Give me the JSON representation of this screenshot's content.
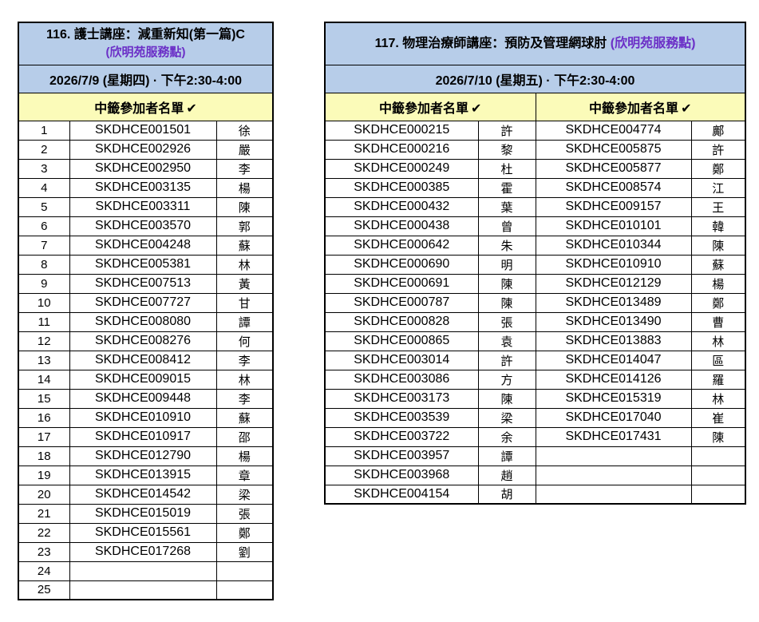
{
  "colors": {
    "header_blue": "#B7CDE9",
    "header_yellow": "#FBFBB9",
    "accent_purple": "#6B2FC7",
    "border_black": "#000000"
  },
  "tables": [
    {
      "title_main": "116. 護士講座：減重新知(第一篇)C",
      "title_sub": "(欣明苑服務點)",
      "date": "2026/7/9 (星期四) · 下午2:30-4:00",
      "list_header": "中籤參加者名單",
      "check_icon": "✔",
      "columns": [
        {
          "key": "num",
          "name": "row-number",
          "class": "c-num"
        },
        {
          "key": "code",
          "name": "participant-code",
          "class": "c-code"
        },
        {
          "key": "name",
          "name": "participant-surname",
          "class": "c-name"
        }
      ],
      "rows": [
        {
          "num": "1",
          "code": "SKDHCE001501",
          "name": "徐"
        },
        {
          "num": "2",
          "code": "SKDHCE002926",
          "name": "嚴"
        },
        {
          "num": "3",
          "code": "SKDHCE002950",
          "name": "李"
        },
        {
          "num": "4",
          "code": "SKDHCE003135",
          "name": "楊"
        },
        {
          "num": "5",
          "code": "SKDHCE003311",
          "name": "陳"
        },
        {
          "num": "6",
          "code": "SKDHCE003570",
          "name": "郭"
        },
        {
          "num": "7",
          "code": "SKDHCE004248",
          "name": "蘇"
        },
        {
          "num": "8",
          "code": "SKDHCE005381",
          "name": "林"
        },
        {
          "num": "9",
          "code": "SKDHCE007513",
          "name": "黃"
        },
        {
          "num": "10",
          "code": "SKDHCE007727",
          "name": "甘"
        },
        {
          "num": "11",
          "code": "SKDHCE008080",
          "name": "譚"
        },
        {
          "num": "12",
          "code": "SKDHCE008276",
          "name": "何"
        },
        {
          "num": "13",
          "code": "SKDHCE008412",
          "name": "李"
        },
        {
          "num": "14",
          "code": "SKDHCE009015",
          "name": "林"
        },
        {
          "num": "15",
          "code": "SKDHCE009448",
          "name": "李"
        },
        {
          "num": "16",
          "code": "SKDHCE010910",
          "name": "蘇"
        },
        {
          "num": "17",
          "code": "SKDHCE010917",
          "name": "邵"
        },
        {
          "num": "18",
          "code": "SKDHCE012790",
          "name": "楊"
        },
        {
          "num": "19",
          "code": "SKDHCE013915",
          "name": "章"
        },
        {
          "num": "20",
          "code": "SKDHCE014542",
          "name": "梁"
        },
        {
          "num": "21",
          "code": "SKDHCE015019",
          "name": "張"
        },
        {
          "num": "22",
          "code": "SKDHCE015561",
          "name": "鄭"
        },
        {
          "num": "23",
          "code": "SKDHCE017268",
          "name": "劉"
        },
        {
          "num": "24",
          "code": "",
          "name": ""
        },
        {
          "num": "25",
          "code": "",
          "name": ""
        }
      ]
    },
    {
      "title_main": "117. 物理治療師講座：預防及管理網球肘",
      "title_sub": "(欣明苑服務點)",
      "date": "2026/7/10 (星期五) · 下午2:30-4:00",
      "list_header": "中籤參加者名單",
      "check_icon": "✔",
      "columns": [
        {
          "key": "code1",
          "name": "participant-code",
          "class": "c-code"
        },
        {
          "key": "name1",
          "name": "participant-surname",
          "class": "c-name"
        },
        {
          "key": "code2",
          "name": "participant-code",
          "class": "c-code"
        },
        {
          "key": "name2",
          "name": "participant-surname",
          "class": "c-name"
        }
      ],
      "rows": [
        {
          "code1": "SKDHCE000215",
          "name1": "許",
          "code2": "SKDHCE004774",
          "name2": "鄺"
        },
        {
          "code1": "SKDHCE000216",
          "name1": "黎",
          "code2": "SKDHCE005875",
          "name2": "許"
        },
        {
          "code1": "SKDHCE000249",
          "name1": "杜",
          "code2": "SKDHCE005877",
          "name2": "鄭"
        },
        {
          "code1": "SKDHCE000385",
          "name1": "霍",
          "code2": "SKDHCE008574",
          "name2": "江"
        },
        {
          "code1": "SKDHCE000432",
          "name1": "葉",
          "code2": "SKDHCE009157",
          "name2": "王"
        },
        {
          "code1": "SKDHCE000438",
          "name1": "曾",
          "code2": "SKDHCE010101",
          "name2": "韓"
        },
        {
          "code1": "SKDHCE000642",
          "name1": "朱",
          "code2": "SKDHCE010344",
          "name2": "陳"
        },
        {
          "code1": "SKDHCE000690",
          "name1": "明",
          "code2": "SKDHCE010910",
          "name2": "蘇"
        },
        {
          "code1": "SKDHCE000691",
          "name1": "陳",
          "code2": "SKDHCE012129",
          "name2": "楊"
        },
        {
          "code1": "SKDHCE000787",
          "name1": "陳",
          "code2": "SKDHCE013489",
          "name2": "鄭"
        },
        {
          "code1": "SKDHCE000828",
          "name1": "張",
          "code2": "SKDHCE013490",
          "name2": "曹"
        },
        {
          "code1": "SKDHCE000865",
          "name1": "袁",
          "code2": "SKDHCE013883",
          "name2": "林"
        },
        {
          "code1": "SKDHCE003014",
          "name1": "許",
          "code2": "SKDHCE014047",
          "name2": "區"
        },
        {
          "code1": "SKDHCE003086",
          "name1": "方",
          "code2": "SKDHCE014126",
          "name2": "羅"
        },
        {
          "code1": "SKDHCE003173",
          "name1": "陳",
          "code2": "SKDHCE015319",
          "name2": "林"
        },
        {
          "code1": "SKDHCE003539",
          "name1": "梁",
          "code2": "SKDHCE017040",
          "name2": "崔"
        },
        {
          "code1": "SKDHCE003722",
          "name1": "余",
          "code2": "SKDHCE017431",
          "name2": "陳"
        },
        {
          "code1": "SKDHCE003957",
          "name1": "譚",
          "code2": "",
          "name2": ""
        },
        {
          "code1": "SKDHCE003968",
          "name1": "趙",
          "code2": "",
          "name2": ""
        },
        {
          "code1": "SKDHCE004154",
          "name1": "胡",
          "code2": "",
          "name2": ""
        }
      ]
    }
  ]
}
